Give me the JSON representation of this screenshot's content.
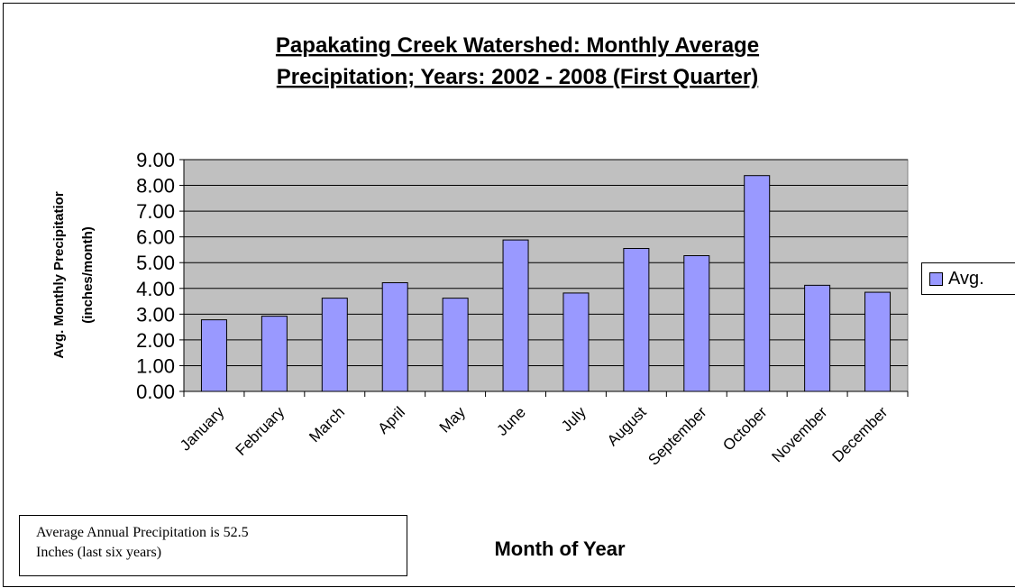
{
  "chart_data": {
    "type": "bar",
    "title_lines": [
      "Papakating Creek Watershed: Monthly Average",
      "Precipitation;  Years:  2002 - 2008 (First Quarter)"
    ],
    "categories": [
      "January",
      "February",
      "March",
      "April",
      "May",
      "June",
      "July",
      "August",
      "September",
      "October",
      "November",
      "December"
    ],
    "series": [
      {
        "name": "Avg.",
        "values": [
          2.78,
          2.92,
          3.62,
          4.22,
          3.62,
          5.88,
          3.82,
          5.55,
          5.27,
          8.38,
          4.12,
          3.85
        ]
      }
    ],
    "ylabel_lines": [
      "Avg. Monthly Precipitatior",
      "(inches/month)"
    ],
    "xlabel": "Month of Year",
    "ylim": [
      0,
      9
    ],
    "yticks": [
      "0.00",
      "1.00",
      "2.00",
      "3.00",
      "4.00",
      "5.00",
      "6.00",
      "7.00",
      "8.00",
      "9.00"
    ],
    "grid": true,
    "legend_position": "right",
    "bar_color": "#9999ff",
    "plot_background": "#c0c0c0"
  },
  "annotation": {
    "line1": "Average Annual Precipitation is 52.5",
    "line2": "Inches (last six years)"
  }
}
